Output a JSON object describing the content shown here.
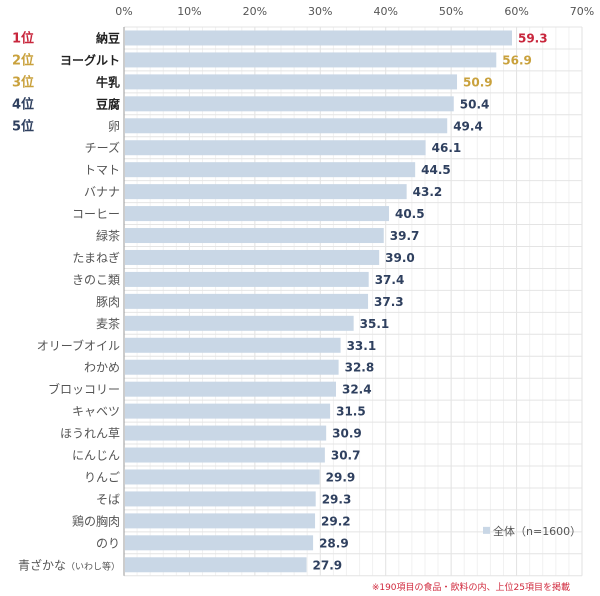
{
  "chart_data": {
    "type": "bar",
    "orientation": "horizontal",
    "x_ticks": [
      "0%",
      "10%",
      "20%",
      "30%",
      "40%",
      "50%",
      "60%",
      "70%"
    ],
    "xlim": [
      0,
      70
    ],
    "grid": true,
    "ranks": [
      {
        "label": "1位",
        "color": "#c8263c"
      },
      {
        "label": "2位",
        "color": "#c9a13c"
      },
      {
        "label": "3位",
        "color": "#c9a13c"
      },
      {
        "label": "4位",
        "color": "#2f405f"
      },
      {
        "label": "5位",
        "color": "#2f405f"
      }
    ],
    "categories": [
      "納豆",
      "ヨーグルト",
      "牛乳",
      "豆腐",
      "卵",
      "チーズ",
      "トマト",
      "バナナ",
      "コーヒー",
      "緑茶",
      "たまねぎ",
      "きのこ類",
      "豚肉",
      "麦茶",
      "オリーブオイル",
      "わかめ",
      "ブロッコリー",
      "キャベツ",
      "ほうれん草",
      "にんじん",
      "りんご",
      "そば",
      "鶏の胸肉",
      "のり",
      "青ざかな"
    ],
    "last_category_note": "（いわし等）",
    "values": [
      59.3,
      56.9,
      50.9,
      50.4,
      49.4,
      46.1,
      44.5,
      43.2,
      40.5,
      39.7,
      39.0,
      37.4,
      37.3,
      35.1,
      33.1,
      32.8,
      32.4,
      31.5,
      30.9,
      30.7,
      29.9,
      29.3,
      29.2,
      28.9,
      27.9
    ],
    "series": [
      {
        "name": "全体（n=1600）",
        "color": "#c9d7e6"
      }
    ],
    "legend_position": "bottom-right",
    "value_label_colors": {
      "0": "#c8263c",
      "1": "#c9a13c",
      "2": "#c9a13c",
      "default": "#2f405f"
    },
    "footnote": "※190項目の食品・飲料の内、上位25項目を掲載",
    "footnote_color": "#d0283c"
  }
}
